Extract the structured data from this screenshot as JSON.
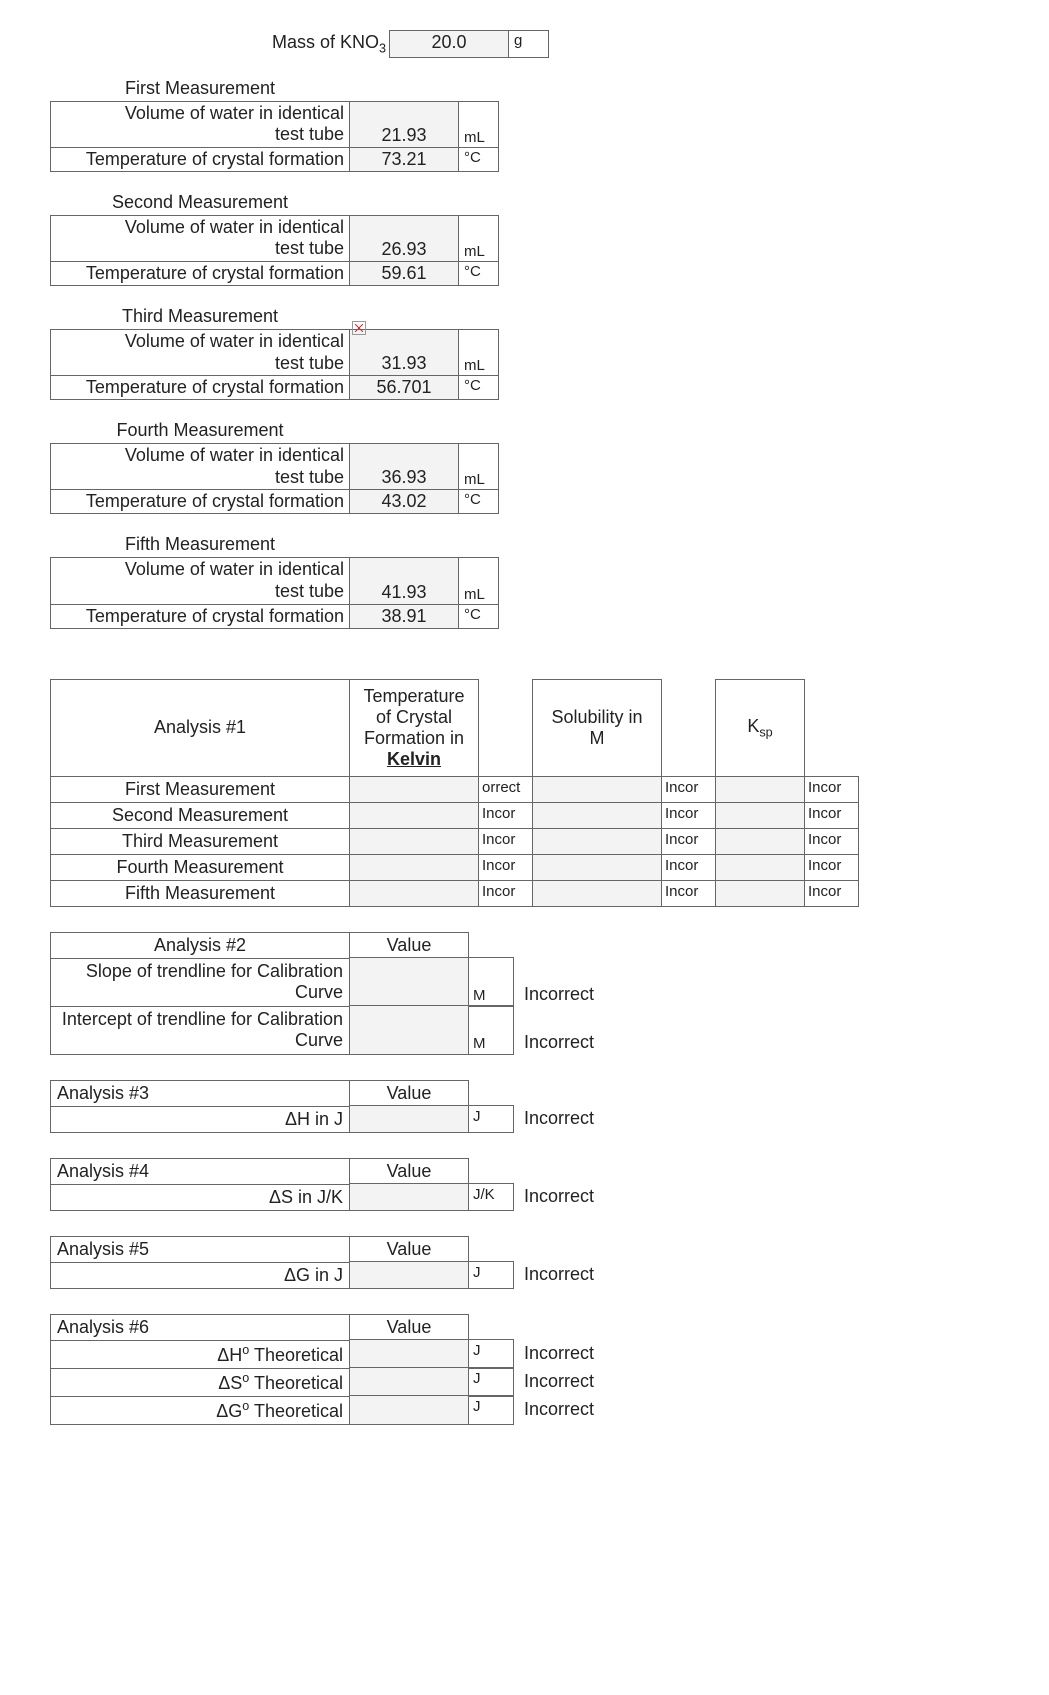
{
  "mass": {
    "label": "Mass of KNO",
    "sub": "3",
    "value": "20.0",
    "unit": "g"
  },
  "measurements": [
    {
      "title": "First Measurement",
      "vol_label": "Volume of water in identical test tube",
      "vol": "21.93",
      "vol_unit": "mL",
      "temp_label": "Temperature of crystal formation",
      "temp": "73.21",
      "temp_unit": "°C"
    },
    {
      "title": "Second Measurement",
      "vol_label": "Volume of water in identical test tube",
      "vol": "26.93",
      "vol_unit": "mL",
      "temp_label": "Temperature of crystal formation",
      "temp": "59.61",
      "temp_unit": "°C"
    },
    {
      "title": "Third Measurement",
      "vol_label": "Volume of water in identical test tube",
      "vol": "31.93",
      "vol_unit": "mL",
      "temp_label": "Temperature of crystal formation",
      "temp": "56.701",
      "temp_unit": "°C"
    },
    {
      "title": "Fourth Measurement",
      "vol_label": "Volume of water in identical test tube",
      "vol": "36.93",
      "vol_unit": "mL",
      "temp_label": "Temperature of crystal formation",
      "temp": "43.02",
      "temp_unit": "°C"
    },
    {
      "title": "Fifth Measurement",
      "vol_label": "Volume of water in identical test tube",
      "vol": "41.93",
      "vol_unit": "mL",
      "temp_label": "Temperature of crystal formation",
      "temp": "38.91",
      "temp_unit": "°C"
    }
  ],
  "analysis1": {
    "title": "Analysis #1",
    "col1_l1": "Temperature",
    "col1_l2": "of Crystal",
    "col1_l3": "Formation in",
    "col1_l4": "Kelvin",
    "col3_l1": "Solubility in",
    "col3_l2": "M",
    "col5": "K",
    "col5_sub": "sp",
    "rows": [
      {
        "label": "First Measurement",
        "s1": "orrect",
        "s2": "Incor",
        "s3": "Incor"
      },
      {
        "label": "Second Measurement",
        "s1": "Incor",
        "s2": "Incor",
        "s3": "Incor"
      },
      {
        "label": "Third Measurement",
        "s1": "Incor",
        "s2": "Incor",
        "s3": "Incor"
      },
      {
        "label": "Fourth Measurement",
        "s1": "Incor",
        "s2": "Incor",
        "s3": "Incor"
      },
      {
        "label": "Fifth Measurement",
        "s1": "Incor",
        "s2": "Incor",
        "s3": "Incor"
      }
    ]
  },
  "analysis2": {
    "title": "Analysis #2",
    "value_hdr": "Value",
    "rows": [
      {
        "label": "Slope of trendline for Calibration Curve",
        "unit": "M",
        "status": "Incorrect"
      },
      {
        "label": "Intercept of trendline for Calibration Curve",
        "unit": "M",
        "status": "Incorrect"
      }
    ]
  },
  "analysis3": {
    "title": "Analysis #3",
    "value_hdr": "Value",
    "row_label": "ΔH in J",
    "unit": "J",
    "status": "Incorrect"
  },
  "analysis4": {
    "title": "Analysis #4",
    "value_hdr": "Value",
    "row_label": "ΔS in J/K",
    "unit": "J/K",
    "status": "Incorrect"
  },
  "analysis5": {
    "title": "Analysis #5",
    "value_hdr": "Value",
    "row_label": "ΔG in J",
    "unit": "J",
    "status": "Incorrect"
  },
  "analysis6": {
    "title": "Analysis #6",
    "value_hdr": "Value",
    "rows": [
      {
        "label": "ΔH° Theoretical",
        "unit": "J",
        "status": "Incorrect"
      },
      {
        "label": "ΔS° Theoretical",
        "unit": "J",
        "status": "Incorrect"
      },
      {
        "label": "ΔG° Theoretical",
        "unit": "J",
        "status": "Incorrect"
      }
    ]
  }
}
